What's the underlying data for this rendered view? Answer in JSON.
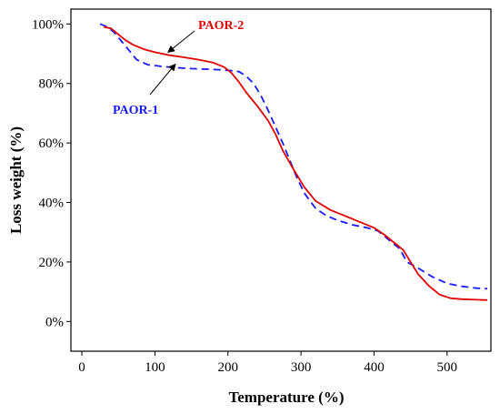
{
  "chart_data": {
    "type": "line",
    "title": "",
    "xlabel": "Temperature (%)",
    "ylabel": "Loss weight (%)",
    "xlim": [
      -15,
      560
    ],
    "ylim": [
      -10,
      105
    ],
    "x_ticks": [
      0,
      100,
      200,
      300,
      400,
      500
    ],
    "y_ticks": [
      0,
      20,
      40,
      60,
      80,
      100
    ],
    "y_tick_labels": [
      "0%",
      "20%",
      "40%",
      "60%",
      "80%",
      "100%"
    ],
    "grid": false,
    "legend": "annotations",
    "series": [
      {
        "name": "PAOR-1",
        "color": "#1a1aff",
        "style": "dashed",
        "x": [
          25,
          35,
          45,
          55,
          65,
          75,
          90,
          110,
          130,
          150,
          170,
          190,
          205,
          215,
          225,
          235,
          245,
          255,
          265,
          275,
          285,
          295,
          305,
          320,
          335,
          350,
          370,
          390,
          405,
          415,
          425,
          435,
          445,
          460,
          480,
          500,
          520,
          540,
          555
        ],
        "y": [
          100,
          99,
          97,
          94,
          91,
          88,
          86.3,
          85.7,
          85.3,
          85,
          84.8,
          84.6,
          84.3,
          84,
          82.5,
          80,
          76,
          71,
          65.5,
          60,
          54,
          48,
          43,
          38,
          35.5,
          34,
          32.5,
          31.5,
          30.5,
          28.5,
          26.5,
          24.5,
          20,
          18,
          15,
          12.8,
          11.8,
          11.2,
          11
        ]
      },
      {
        "name": "PAOR-2",
        "color": "#e00000",
        "style": "solid",
        "x": [
          30,
          40,
          50,
          60,
          70,
          85,
          100,
          120,
          140,
          160,
          180,
          195,
          205,
          215,
          225,
          240,
          255,
          265,
          275,
          290,
          305,
          320,
          340,
          360,
          380,
          400,
          415,
          425,
          440,
          450,
          460,
          475,
          490,
          505,
          520,
          540,
          555
        ],
        "y": [
          99,
          98.5,
          96.5,
          94.5,
          93,
          91.5,
          90.5,
          89.5,
          88.8,
          88,
          87,
          85.5,
          83.5,
          80.5,
          77,
          72.5,
          67.5,
          63,
          57.5,
          51,
          45,
          40.5,
          37.5,
          35.5,
          33.5,
          31.5,
          29,
          27,
          24,
          20,
          16,
          12,
          9,
          7.8,
          7.5,
          7.3,
          7.2
        ]
      }
    ],
    "annotations": [
      {
        "text": "PAOR-2",
        "series": 1,
        "color": "#e00000"
      },
      {
        "text": "PAOR-1",
        "series": 0,
        "color": "#1a1aff"
      }
    ]
  }
}
